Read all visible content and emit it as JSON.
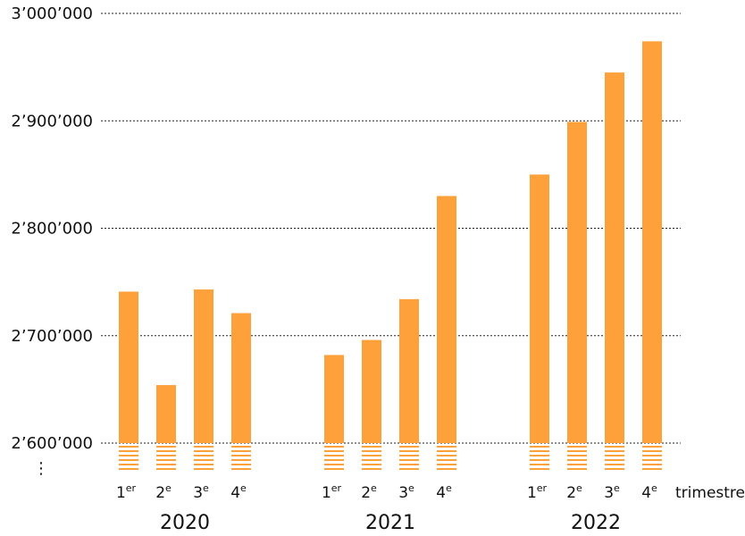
{
  "chart_data": {
    "type": "bar",
    "title": "",
    "xlabel": "trimestre",
    "ylabel": "",
    "ylim": [
      2600000,
      3000000
    ],
    "axis_break": true,
    "axis_break_symbol": "⋮",
    "grid": true,
    "y_ticks": [
      {
        "value": 2600000,
        "label": "2’600’000"
      },
      {
        "value": 2700000,
        "label": "2’700’000"
      },
      {
        "value": 2800000,
        "label": "2’800’000"
      },
      {
        "value": 2900000,
        "label": "2’900’000"
      },
      {
        "value": 3000000,
        "label": "3’000’000"
      }
    ],
    "bar_color": "#FFA13B",
    "groups": [
      {
        "label": "2020",
        "bars": [
          {
            "label": "1",
            "suffix": "er",
            "value": 2741000
          },
          {
            "label": "2",
            "suffix": "e",
            "value": 2654000
          },
          {
            "label": "3",
            "suffix": "e",
            "value": 2743000
          },
          {
            "label": "4",
            "suffix": "e",
            "value": 2721000
          }
        ]
      },
      {
        "label": "2021",
        "bars": [
          {
            "label": "1",
            "suffix": "er",
            "value": 2682000
          },
          {
            "label": "2",
            "suffix": "e",
            "value": 2696000
          },
          {
            "label": "3",
            "suffix": "e",
            "value": 2734000
          },
          {
            "label": "4",
            "suffix": "e",
            "value": 2830000
          }
        ]
      },
      {
        "label": "2022",
        "bars": [
          {
            "label": "1",
            "suffix": "er",
            "value": 2850000
          },
          {
            "label": "2",
            "suffix": "e",
            "value": 2899000
          },
          {
            "label": "3",
            "suffix": "e",
            "value": 2945000
          },
          {
            "label": "4",
            "suffix": "e",
            "value": 2974000
          }
        ]
      }
    ]
  }
}
